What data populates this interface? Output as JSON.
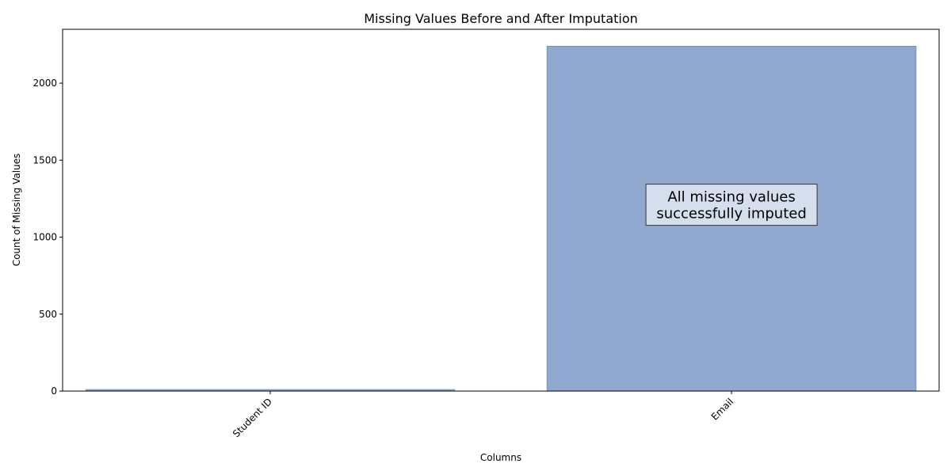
{
  "chart_data": {
    "type": "bar",
    "title": "Missing Values Before and After Imputation",
    "xlabel": "Columns",
    "ylabel": "Count of Missing Values",
    "categories": [
      "Student ID",
      "Email"
    ],
    "values": [
      10,
      2240
    ],
    "ylim": [
      0,
      2350
    ],
    "yticks": [
      0,
      500,
      1000,
      1500,
      2000
    ],
    "grid": false,
    "bar_color": "#92a9cf",
    "bar_edge_color": "#6f86b8",
    "annotation": {
      "lines": [
        "All missing values",
        "successfully imputed"
      ],
      "category": "Email",
      "y": 1200,
      "box_color": "#dde3f0",
      "border_color": "#333333"
    }
  }
}
